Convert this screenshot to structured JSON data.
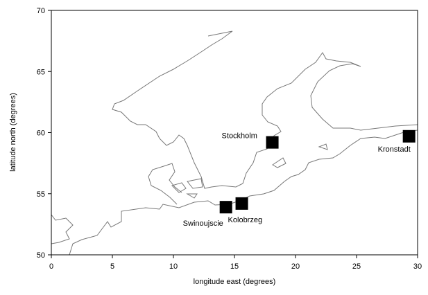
{
  "chart_data": {
    "type": "scatter",
    "xlabel": "longitude east (degrees)",
    "ylabel": "latitude north (degrees)",
    "labels": [
      "Stockholm",
      "Kronstadt",
      "Swinoujscie",
      "Kolobrzeg"
    ],
    "x": [
      18.1,
      29.3,
      14.3,
      15.6
    ],
    "values": [
      59.2,
      59.7,
      53.9,
      54.2
    ],
    "color": "#000000",
    "xlim": [
      0,
      30
    ],
    "ylim": [
      50,
      70
    ],
    "xticks": [
      0,
      5,
      10,
      15,
      20,
      25,
      30
    ],
    "yticks": [
      50,
      55,
      60,
      65,
      70
    ]
  }
}
